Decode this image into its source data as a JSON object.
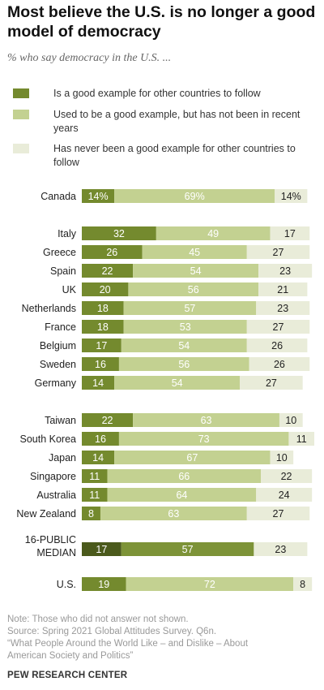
{
  "title": "Most believe the U.S. is no longer a good model of democracy",
  "subtitle": "% who say democracy in the U.S. ...",
  "colors": {
    "good": "#748a2e",
    "used_to": "#c3d191",
    "never": "#e9ecd9",
    "median_good": "#4b5a1c",
    "median_used_to": "#7d9338"
  },
  "chart_data": {
    "type": "bar",
    "stacked": true,
    "orientation": "horizontal",
    "series": [
      {
        "name": "Is a good example for other countries to follow",
        "values": [
          14,
          32,
          26,
          22,
          20,
          18,
          18,
          17,
          16,
          14,
          22,
          16,
          14,
          11,
          11,
          8,
          17,
          19
        ]
      },
      {
        "name": "Used to be a good example, but has not been in recent years",
        "values": [
          69,
          49,
          45,
          54,
          56,
          57,
          53,
          54,
          56,
          54,
          63,
          73,
          67,
          66,
          64,
          63,
          57,
          72
        ]
      },
      {
        "name": "Has never been a good example for other countries to follow",
        "values": [
          14,
          17,
          27,
          23,
          21,
          23,
          27,
          26,
          26,
          27,
          10,
          11,
          10,
          22,
          24,
          27,
          23,
          8
        ]
      }
    ],
    "categories": [
      "Canada",
      "Italy",
      "Greece",
      "Spain",
      "UK",
      "Netherlands",
      "France",
      "Belgium",
      "Sweden",
      "Germany",
      "Taiwan",
      "South Korea",
      "Japan",
      "Singapore",
      "Australia",
      "New Zealand",
      "16-PUBLIC MEDIAN",
      "U.S."
    ],
    "value_labels": [
      [
        "14%",
        "69%",
        "14%"
      ],
      [
        "32",
        "49",
        "17"
      ],
      [
        "26",
        "45",
        "27"
      ],
      [
        "22",
        "54",
        "23"
      ],
      [
        "20",
        "56",
        "21"
      ],
      [
        "18",
        "57",
        "23"
      ],
      [
        "18",
        "53",
        "27"
      ],
      [
        "17",
        "54",
        "26"
      ],
      [
        "16",
        "56",
        "26"
      ],
      [
        "14",
        "54",
        "27"
      ],
      [
        "22",
        "63",
        "10"
      ],
      [
        "16",
        "73",
        "11"
      ],
      [
        "14",
        "67",
        "10"
      ],
      [
        "11",
        "66",
        "22"
      ],
      [
        "11",
        "64",
        "24"
      ],
      [
        "8",
        "63",
        "27"
      ],
      [
        "17",
        "57",
        "23"
      ],
      [
        "19",
        "72",
        "8"
      ]
    ],
    "median_category": "16-PUBLIC MEDIAN",
    "median_label_lines": [
      "16-PUBLIC",
      "MEDIAN"
    ]
  },
  "notes": [
    "Note: Those who did not answer not shown.",
    "Source: Spring 2021 Global Attitudes Survey. Q6n.",
    "“What People Around the World Like – and Dislike – About",
    "American Society and Politics”"
  ],
  "brand": "PEW RESEARCH CENTER"
}
